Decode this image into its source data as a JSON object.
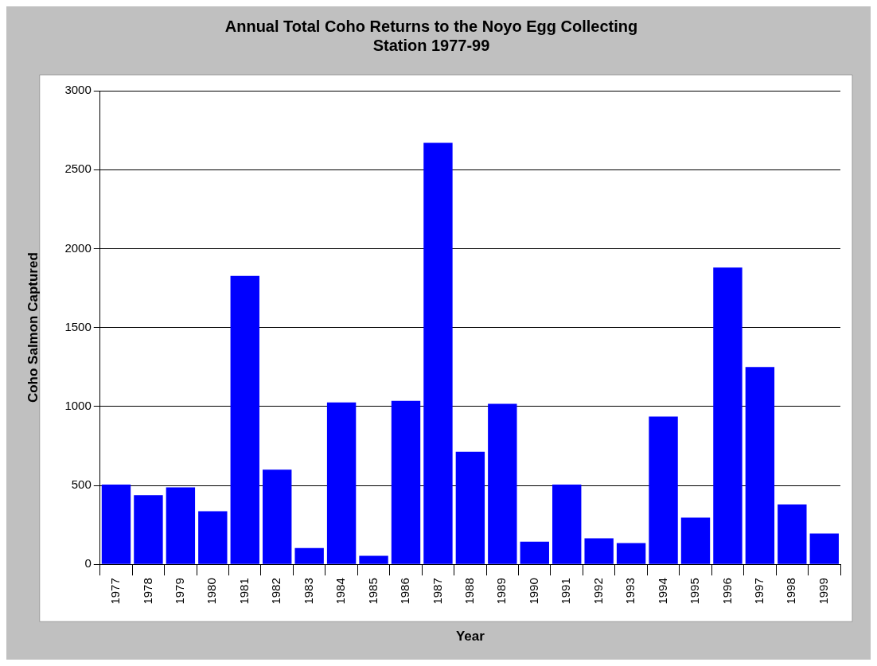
{
  "chart_data": {
    "type": "bar",
    "title": "Annual Total Coho Returns to the Noyo Egg Collecting Station 1977-99",
    "xlabel": "Year",
    "ylabel": "Coho Salmon Captured",
    "categories": [
      "1977",
      "1978",
      "1979",
      "1980",
      "1981",
      "1982",
      "1983",
      "1984",
      "1985",
      "1986",
      "1987",
      "1988",
      "1989",
      "1990",
      "1991",
      "1992",
      "1993",
      "1994",
      "1995",
      "1996",
      "1997",
      "1998",
      "1999"
    ],
    "values": [
      505,
      439,
      488,
      336,
      1827,
      600,
      103,
      1026,
      54,
      1036,
      2670,
      713,
      1017,
      143,
      505,
      165,
      135,
      936,
      296,
      1880,
      1250,
      379,
      195
    ],
    "color": "#0000ff",
    "ylim": [
      0,
      3000
    ],
    "yticks": [
      0,
      500,
      1000,
      1500,
      2000,
      2500,
      3000
    ],
    "grid": "y"
  }
}
